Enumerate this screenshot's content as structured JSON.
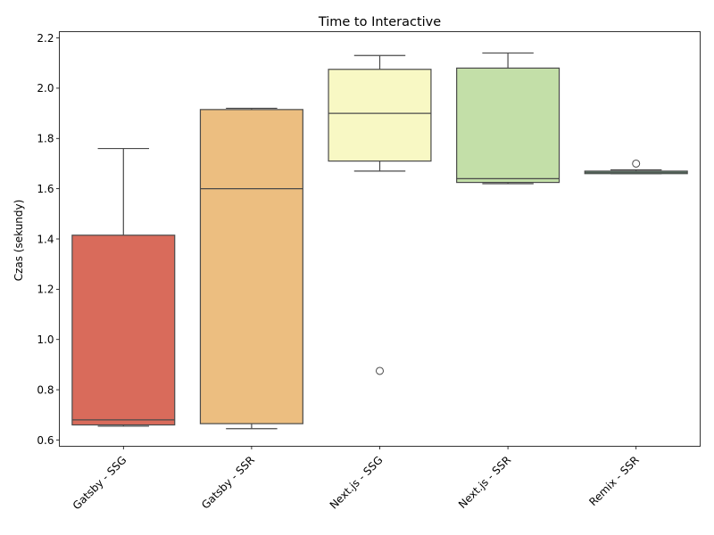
{
  "chart_data": {
    "type": "box",
    "title": "Time to Interactive",
    "xlabel": "",
    "ylabel": "Czas (sekundy)",
    "ylim": [
      0.575,
      2.225
    ],
    "yticks": [
      0.6,
      0.8,
      1.0,
      1.2,
      1.4,
      1.6,
      1.8,
      2.0,
      2.2
    ],
    "ytick_labels": [
      "0.6",
      "0.8",
      "1.0",
      "1.2",
      "1.4",
      "1.6",
      "1.8",
      "2.0",
      "2.2"
    ],
    "grid": false,
    "categories": [
      "Gatsby - SSG",
      "Gatsby - SSR",
      "Next.js - SSG",
      "Next.js - SSR",
      "Remix - SSR"
    ],
    "boxes": [
      {
        "category": "Gatsby - SSG",
        "whisker_low": 0.655,
        "q1": 0.66,
        "median": 0.68,
        "q3": 1.415,
        "whisker_high": 1.76,
        "outliers": [],
        "color": "#d96b5b"
      },
      {
        "category": "Gatsby - SSR",
        "whisker_low": 0.645,
        "q1": 0.665,
        "median": 1.6,
        "q3": 1.915,
        "whisker_high": 1.92,
        "outliers": [],
        "color": "#ecbe80"
      },
      {
        "category": "Next.js - SSG",
        "whisker_low": 1.67,
        "q1": 1.71,
        "median": 1.9,
        "q3": 2.075,
        "whisker_high": 2.13,
        "outliers": [
          0.875
        ],
        "color": "#f8f8c4"
      },
      {
        "category": "Next.js - SSR",
        "whisker_low": 1.62,
        "q1": 1.625,
        "median": 1.64,
        "q3": 2.08,
        "whisker_high": 2.14,
        "outliers": [],
        "color": "#c3dfa8"
      },
      {
        "category": "Remix - SSR",
        "whisker_low": 1.66,
        "q1": 1.66,
        "median": 1.665,
        "q3": 1.67,
        "whisker_high": 1.675,
        "outliers": [
          1.7
        ],
        "color": "#7fcf9a"
      }
    ]
  }
}
